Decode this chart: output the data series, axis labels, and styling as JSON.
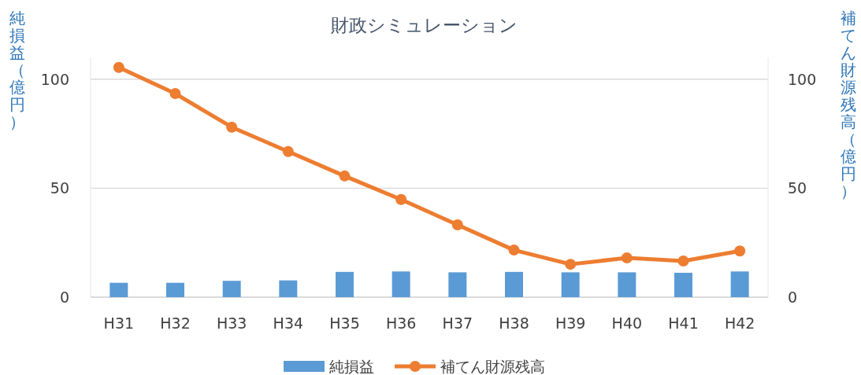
{
  "chart_data": {
    "type": "bar",
    "title": "財政シミュレーション",
    "ylabel": "純損益（億円）",
    "y2label": "補てん財源残高（億円）",
    "categories": [
      "H31",
      "H32",
      "H33",
      "H34",
      "H35",
      "H36",
      "H37",
      "H38",
      "H39",
      "H40",
      "H41",
      "H42"
    ],
    "series": [
      {
        "name": "純損益",
        "color": "#5b9bd5",
        "values": [
          6.6,
          6.6,
          7.5,
          7.7,
          11.6,
          11.8,
          11.4,
          11.6,
          11.4,
          11.4,
          11.2,
          11.8
        ]
      },
      {
        "name": "補てん財源残高",
        "type": "line",
        "axis": "y2",
        "color": "#ed7d31",
        "marker": "circle",
        "values": [
          105.4,
          93.4,
          78.0,
          66.8,
          55.6,
          44.8,
          33.2,
          21.6,
          15.1,
          18.0,
          16.6,
          21.2
        ]
      }
    ],
    "ylim": [
      0,
      110
    ],
    "yticks": [
      0,
      50,
      100
    ],
    "y2lim": [
      0,
      110
    ],
    "y2ticks": [
      0,
      50,
      100
    ],
    "grid": "y",
    "legend": "bottom"
  }
}
